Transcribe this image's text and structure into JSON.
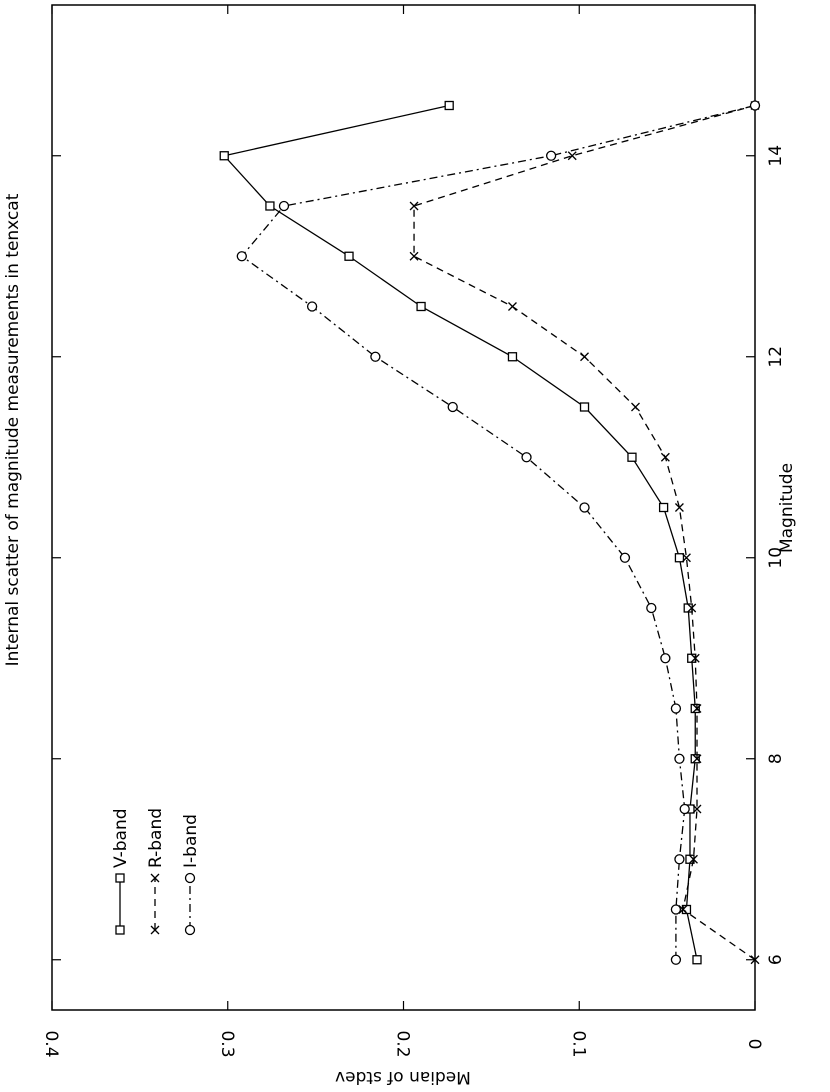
{
  "chart_data": {
    "type": "line",
    "title": "Internal scatter of magnitude measurements in tenxcat",
    "x_label": "Magnitude",
    "y_label": "Median of stdev",
    "x": [
      6,
      6.5,
      7,
      7.5,
      8,
      8.5,
      9,
      9.5,
      10,
      10.5,
      11,
      11.5,
      12,
      12.5,
      13,
      13.5,
      14,
      14.5
    ],
    "series": [
      {
        "name": "V-band",
        "color": "#000000",
        "marker": "square",
        "dash": "solid",
        "values": [
          0.033,
          0.039,
          0.037,
          0.037,
          0.034,
          0.034,
          0.036,
          0.038,
          0.043,
          0.052,
          0.07,
          0.097,
          0.138,
          0.19,
          0.231,
          0.276,
          0.302,
          0.174
        ]
      },
      {
        "name": "R-band",
        "color": "#000000",
        "marker": "x",
        "dash": "dashed",
        "values": [
          0.0,
          0.041,
          0.035,
          0.033,
          0.033,
          0.033,
          0.034,
          0.036,
          0.039,
          0.043,
          0.051,
          0.068,
          0.097,
          0.138,
          0.194,
          0.194,
          0.104,
          0.0
        ]
      },
      {
        "name": "I-band",
        "color": "#000000",
        "marker": "circle",
        "dash": "dashdot",
        "values": [
          0.045,
          0.045,
          0.043,
          0.04,
          0.043,
          0.045,
          0.051,
          0.059,
          0.074,
          0.097,
          0.13,
          0.172,
          0.216,
          0.252,
          0.292,
          0.268,
          0.116,
          0.0
        ]
      }
    ],
    "xlim": [
      5.5,
      15.5
    ],
    "xticks": [
      6,
      8,
      10,
      12,
      14
    ],
    "ylim": [
      0,
      0.4
    ],
    "yticks": [
      0,
      0.1,
      0.2,
      0.3,
      0.4
    ],
    "legend": "upper left",
    "grid": false,
    "rotation": -90
  }
}
